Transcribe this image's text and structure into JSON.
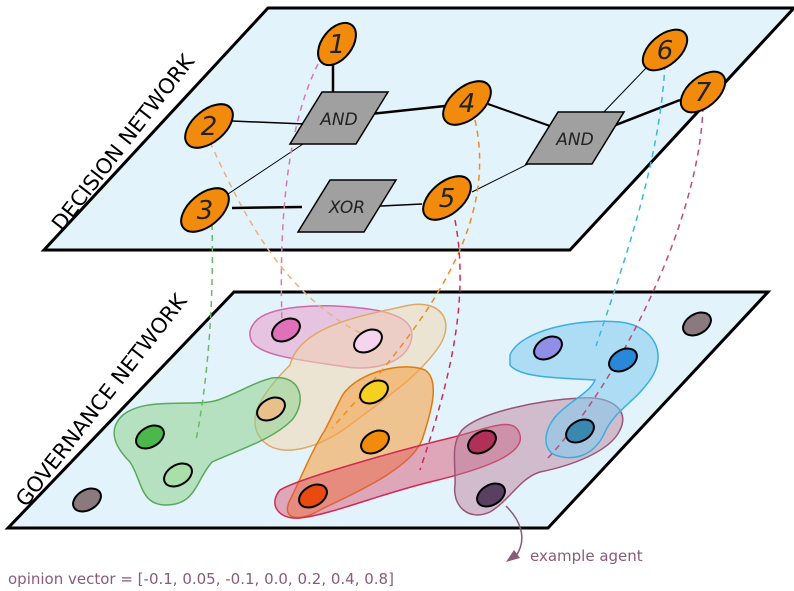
{
  "decision_plane": {
    "title": "DECISION NETWORK",
    "fill": "#e3f3fb",
    "nodes": [
      {
        "id": "n1",
        "label": "1"
      },
      {
        "id": "n2",
        "label": "2"
      },
      {
        "id": "n3",
        "label": "3"
      },
      {
        "id": "n4",
        "label": "4"
      },
      {
        "id": "n5",
        "label": "5"
      },
      {
        "id": "n6",
        "label": "6"
      },
      {
        "id": "n7",
        "label": "7"
      }
    ],
    "node_color": "#f28a0c",
    "gates": [
      {
        "id": "g_and1",
        "label": "AND"
      },
      {
        "id": "g_xor",
        "label": "XOR"
      },
      {
        "id": "g_and2",
        "label": "AND"
      }
    ],
    "gate_color": "#a0a0a0"
  },
  "governance_plane": {
    "title": "GOVERNANCE NETWORK",
    "fill": "#e3f3fb",
    "group_colors": {
      "pink": "#e7a3d0",
      "beige": "#f2d7b0",
      "green": "#8fd18f",
      "orange": "#f7a34a",
      "crimson": "#d94a6a",
      "mauve": "#b77a94",
      "blue": "#7fcaf0"
    }
  },
  "annotations": {
    "example_agent": "example agent",
    "opinion_vector": "opinion vector =  [-0.1, 0.05, -0.1, 0.0, 0.2, 0.4, 0.8]"
  }
}
